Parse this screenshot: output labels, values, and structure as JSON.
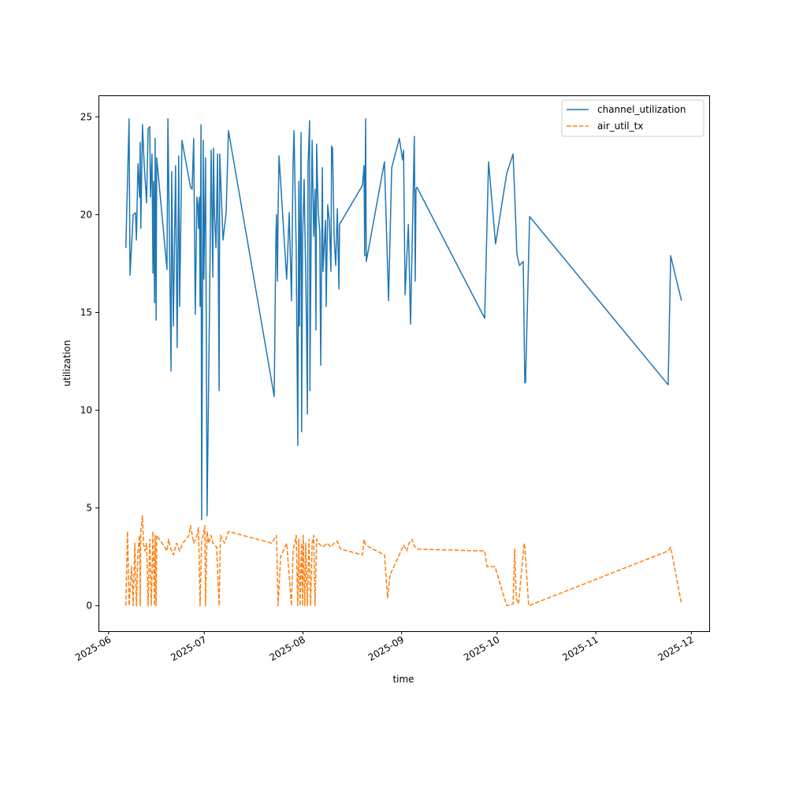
{
  "chart_data": {
    "type": "line",
    "title": "",
    "xlabel": "time",
    "ylabel": "utilization",
    "x_units": "days since 2025-06-01",
    "xlim": [
      -3.2,
      188.6
    ],
    "ylim": [
      -1.3,
      26.1
    ],
    "grid": false,
    "legend_position": "top-right",
    "x_ticks": [
      {
        "value": 0,
        "label": "2025-06"
      },
      {
        "value": 30,
        "label": "2025-07"
      },
      {
        "value": 61,
        "label": "2025-08"
      },
      {
        "value": 92,
        "label": "2025-09"
      },
      {
        "value": 122,
        "label": "2025-10"
      },
      {
        "value": 153,
        "label": "2025-11"
      },
      {
        "value": 183,
        "label": "2025-12"
      }
    ],
    "y_ticks": [
      {
        "value": 0,
        "label": "0"
      },
      {
        "value": 5,
        "label": "5"
      },
      {
        "value": 10,
        "label": "10"
      },
      {
        "value": 15,
        "label": "15"
      },
      {
        "value": 20,
        "label": "20"
      },
      {
        "value": 25,
        "label": "25"
      }
    ],
    "series": [
      {
        "name": "channel_utilization",
        "color": "#1f77b4",
        "style": "solid",
        "points": [
          [
            5.4,
            18.3
          ],
          [
            6.4,
            24.9
          ],
          [
            6.7,
            16.9
          ],
          [
            7.7,
            20.0
          ],
          [
            8.4,
            20.1
          ],
          [
            8.7,
            18.7
          ],
          [
            9.2,
            22.6
          ],
          [
            9.7,
            20.9
          ],
          [
            9.9,
            23.7
          ],
          [
            10.1,
            19.3
          ],
          [
            10.6,
            24.6
          ],
          [
            11.1,
            22.7
          ],
          [
            11.9,
            20.6
          ],
          [
            12.4,
            24.4
          ],
          [
            12.9,
            24.5
          ],
          [
            13.1,
            20.9
          ],
          [
            13.6,
            23.1
          ],
          [
            13.9,
            17.0
          ],
          [
            14.1,
            21.7
          ],
          [
            14.4,
            15.5
          ],
          [
            14.6,
            23.9
          ],
          [
            14.9,
            14.6
          ],
          [
            15.1,
            22.9
          ],
          [
            18.3,
            17.2
          ],
          [
            18.6,
            24.9
          ],
          [
            19.6,
            12.0
          ],
          [
            19.8,
            22.2
          ],
          [
            20.3,
            14.3
          ],
          [
            21.0,
            22.5
          ],
          [
            21.5,
            13.2
          ],
          [
            22.0,
            23.0
          ],
          [
            22.3,
            15.3
          ],
          [
            23.0,
            23.8
          ],
          [
            25.7,
            21.4
          ],
          [
            26.2,
            21.3
          ],
          [
            26.7,
            23.9
          ],
          [
            27.2,
            14.9
          ],
          [
            27.7,
            20.9
          ],
          [
            28.0,
            20.5
          ],
          [
            28.2,
            19.3
          ],
          [
            28.5,
            20.9
          ],
          [
            28.7,
            15.3
          ],
          [
            29.0,
            24.6
          ],
          [
            29.2,
            4.4
          ],
          [
            29.7,
            23.8
          ],
          [
            29.9,
            16.7
          ],
          [
            30.4,
            22.9
          ],
          [
            30.9,
            4.6
          ],
          [
            31.7,
            15.7
          ],
          [
            32.2,
            23.3
          ],
          [
            32.7,
            16.8
          ],
          [
            32.9,
            23.4
          ],
          [
            33.2,
            20.1
          ],
          [
            33.7,
            18.3
          ],
          [
            34.2,
            23.1
          ],
          [
            34.7,
            11.0
          ],
          [
            34.9,
            23.1
          ],
          [
            35.9,
            18.7
          ],
          [
            36.9,
            20.1
          ],
          [
            37.6,
            24.3
          ],
          [
            52.0,
            10.7
          ],
          [
            52.5,
            18.7
          ],
          [
            52.7,
            20.0
          ],
          [
            53.0,
            16.6
          ],
          [
            53.2,
            20.1
          ],
          [
            53.5,
            23.0
          ],
          [
            55.9,
            16.7
          ],
          [
            56.7,
            20.1
          ],
          [
            57.4,
            15.6
          ],
          [
            57.9,
            22.6
          ],
          [
            58.2,
            24.3
          ],
          [
            58.9,
            18.2
          ],
          [
            59.4,
            8.2
          ],
          [
            59.7,
            21.7
          ],
          [
            59.9,
            14.3
          ],
          [
            60.4,
            24.2
          ],
          [
            60.6,
            8.9
          ],
          [
            60.9,
            18.9
          ],
          [
            61.4,
            21.8
          ],
          [
            61.6,
            19.5
          ],
          [
            61.9,
            16.9
          ],
          [
            62.1,
            14.5
          ],
          [
            62.4,
            9.8
          ],
          [
            62.6,
            22.5
          ],
          [
            63.1,
            24.8
          ],
          [
            63.2,
            11.0
          ],
          [
            63.6,
            19.3
          ],
          [
            63.9,
            23.8
          ],
          [
            64.4,
            18.9
          ],
          [
            64.8,
            21.3
          ],
          [
            65.1,
            14.1
          ],
          [
            65.3,
            23.6
          ],
          [
            65.8,
            20.2
          ],
          [
            66.3,
            19.1
          ],
          [
            66.6,
            12.3
          ],
          [
            67.1,
            22.4
          ],
          [
            67.3,
            17.1
          ],
          [
            68.1,
            19.7
          ],
          [
            68.3,
            15.3
          ],
          [
            68.8,
            20.5
          ],
          [
            69.3,
            19.7
          ],
          [
            69.8,
            17.1
          ],
          [
            70.0,
            23.5
          ],
          [
            70.3,
            23.4
          ],
          [
            70.8,
            18.9
          ],
          [
            71.3,
            17.4
          ],
          [
            71.8,
            20.3
          ],
          [
            72.3,
            16.2
          ],
          [
            72.5,
            19.5
          ],
          [
            79.7,
            21.5
          ],
          [
            80.2,
            22.5
          ],
          [
            80.4,
            17.9
          ],
          [
            80.7,
            24.9
          ],
          [
            80.9,
            17.6
          ],
          [
            86.6,
            22.7
          ],
          [
            87.9,
            15.6
          ],
          [
            88.9,
            22.4
          ],
          [
            91.3,
            23.9
          ],
          [
            92.1,
            23.0
          ],
          [
            92.3,
            22.8
          ],
          [
            92.6,
            23.3
          ],
          [
            93.1,
            15.9
          ],
          [
            94.1,
            19.5
          ],
          [
            94.8,
            14.4
          ],
          [
            96.0,
            24.0
          ],
          [
            96.3,
            16.6
          ],
          [
            96.5,
            21.3
          ],
          [
            96.8,
            21.4
          ],
          [
            118.1,
            14.7
          ],
          [
            119.3,
            22.7
          ],
          [
            121.5,
            18.5
          ],
          [
            125.0,
            22.1
          ],
          [
            127.0,
            23.1
          ],
          [
            127.7,
            20.3
          ],
          [
            128.2,
            18.0
          ],
          [
            129.0,
            17.4
          ],
          [
            130.2,
            17.6
          ],
          [
            130.7,
            11.4
          ],
          [
            130.9,
            11.4
          ],
          [
            132.2,
            19.9
          ],
          [
            175.7,
            11.3
          ],
          [
            176.5,
            17.9
          ],
          [
            179.9,
            15.6
          ]
        ]
      },
      {
        "name": "air_util_tx",
        "color": "#ff7f0e",
        "style": "dashed",
        "points": [
          [
            5.4,
            0.0
          ],
          [
            5.9,
            3.8
          ],
          [
            6.4,
            0.0
          ],
          [
            7.2,
            2.0
          ],
          [
            7.7,
            0.0
          ],
          [
            8.2,
            3.2
          ],
          [
            8.7,
            0.0
          ],
          [
            9.2,
            2.8
          ],
          [
            9.7,
            3.6
          ],
          [
            9.9,
            0.0
          ],
          [
            10.1,
            3.8
          ],
          [
            10.6,
            4.6
          ],
          [
            10.9,
            3.2
          ],
          [
            11.4,
            2.8
          ],
          [
            11.9,
            3.2
          ],
          [
            12.4,
            0.0
          ],
          [
            12.9,
            3.4
          ],
          [
            13.4,
            0.0
          ],
          [
            13.9,
            3.8
          ],
          [
            14.4,
            0.0
          ],
          [
            14.6,
            3.6
          ],
          [
            14.9,
            0.0
          ],
          [
            15.1,
            3.6
          ],
          [
            16.8,
            3.2
          ],
          [
            18.3,
            2.8
          ],
          [
            18.8,
            3.4
          ],
          [
            19.3,
            3.0
          ],
          [
            20.3,
            2.6
          ],
          [
            21.3,
            3.2
          ],
          [
            22.3,
            2.8
          ],
          [
            23.3,
            3.2
          ],
          [
            25.2,
            3.6
          ],
          [
            25.7,
            4.1
          ],
          [
            26.7,
            3.2
          ],
          [
            27.7,
            3.6
          ],
          [
            28.2,
            4.0
          ],
          [
            28.7,
            0.0
          ],
          [
            29.2,
            3.4
          ],
          [
            29.7,
            3.6
          ],
          [
            30.2,
            4.1
          ],
          [
            30.4,
            0.0
          ],
          [
            30.9,
            3.8
          ],
          [
            31.4,
            3.2
          ],
          [
            32.2,
            3.6
          ],
          [
            32.7,
            3.2
          ],
          [
            33.9,
            3.0
          ],
          [
            34.7,
            0.0
          ],
          [
            35.1,
            3.6
          ],
          [
            36.4,
            3.2
          ],
          [
            37.6,
            3.8
          ],
          [
            51.2,
            3.2
          ],
          [
            52.7,
            3.6
          ],
          [
            53.2,
            0.0
          ],
          [
            54.0,
            2.5
          ],
          [
            55.9,
            3.2
          ],
          [
            57.4,
            0.0
          ],
          [
            57.9,
            2.8
          ],
          [
            58.9,
            3.6
          ],
          [
            59.4,
            0.0
          ],
          [
            59.7,
            3.4
          ],
          [
            60.1,
            0.0
          ],
          [
            60.6,
            3.2
          ],
          [
            60.9,
            0.0
          ],
          [
            61.1,
            3.6
          ],
          [
            61.6,
            0.0
          ],
          [
            61.9,
            3.2
          ],
          [
            62.4,
            0.0
          ],
          [
            62.9,
            3.4
          ],
          [
            63.4,
            0.0
          ],
          [
            63.9,
            3.2
          ],
          [
            64.4,
            3.6
          ],
          [
            64.8,
            0.0
          ],
          [
            65.3,
            3.4
          ],
          [
            65.8,
            3.2
          ],
          [
            67.3,
            3.0
          ],
          [
            68.6,
            3.2
          ],
          [
            69.8,
            3.0
          ],
          [
            70.8,
            3.2
          ],
          [
            71.8,
            3.3
          ],
          [
            72.8,
            2.9
          ],
          [
            79.7,
            2.6
          ],
          [
            80.2,
            3.4
          ],
          [
            80.7,
            3.1
          ],
          [
            86.6,
            2.6
          ],
          [
            87.6,
            0.4
          ],
          [
            88.4,
            1.6
          ],
          [
            91.3,
            2.6
          ],
          [
            92.6,
            3.1
          ],
          [
            93.6,
            2.8
          ],
          [
            94.3,
            3.2
          ],
          [
            95.3,
            3.4
          ],
          [
            95.8,
            3.1
          ],
          [
            96.8,
            2.9
          ],
          [
            118.1,
            2.8
          ],
          [
            118.8,
            2.0
          ],
          [
            121.3,
            2.0
          ],
          [
            125.0,
            0.0
          ],
          [
            127.0,
            0.1
          ],
          [
            127.5,
            2.9
          ],
          [
            128.0,
            0.4
          ],
          [
            128.7,
            0.1
          ],
          [
            130.5,
            3.2
          ],
          [
            130.7,
            3.0
          ],
          [
            131.9,
            0.0
          ],
          [
            175.7,
            2.8
          ],
          [
            176.5,
            3.0
          ],
          [
            179.9,
            0.1
          ]
        ]
      }
    ]
  }
}
